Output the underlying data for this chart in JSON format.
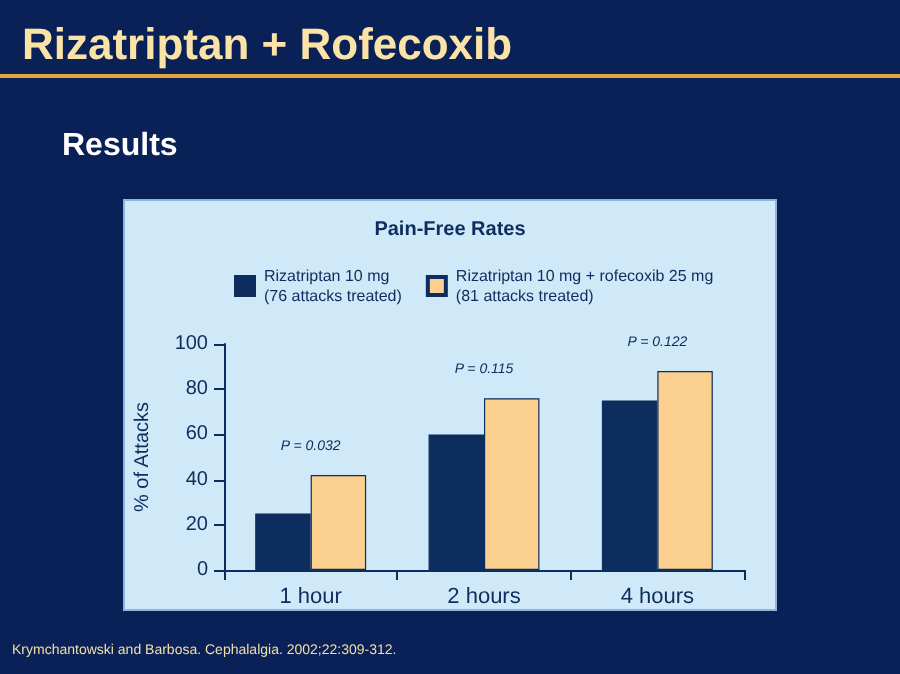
{
  "chart_data": {
    "type": "bar",
    "title": "Rizatriptan + Rofecoxib",
    "subtitle": "Results",
    "ylabel": "% of Attacks",
    "categories": [
      "1 hour",
      "2 hours",
      "4 hours"
    ],
    "series": [
      {
        "name": "Rizatriptan 10 mg\n(76 attacks treated)",
        "color": "#0d2d5e",
        "values": [
          25,
          60,
          75
        ]
      },
      {
        "name": "Rizatriptan 10 mg + rofecoxib 25 mg\n(81 attacks treated)",
        "color": "#fcd08f",
        "values": [
          42,
          76,
          88
        ]
      }
    ],
    "ylim": [
      0,
      100
    ],
    "yticks": [
      0,
      20,
      40,
      60,
      80,
      100
    ],
    "grid": false,
    "legend": "top",
    "annotations": [
      "Pain-Free Rates",
      "P = 0.032",
      "P = 0.115",
      "P = 0.122",
      "Krymchantowski and Barbosa. Cephalalgia. 2002;22:309-312."
    ]
  }
}
